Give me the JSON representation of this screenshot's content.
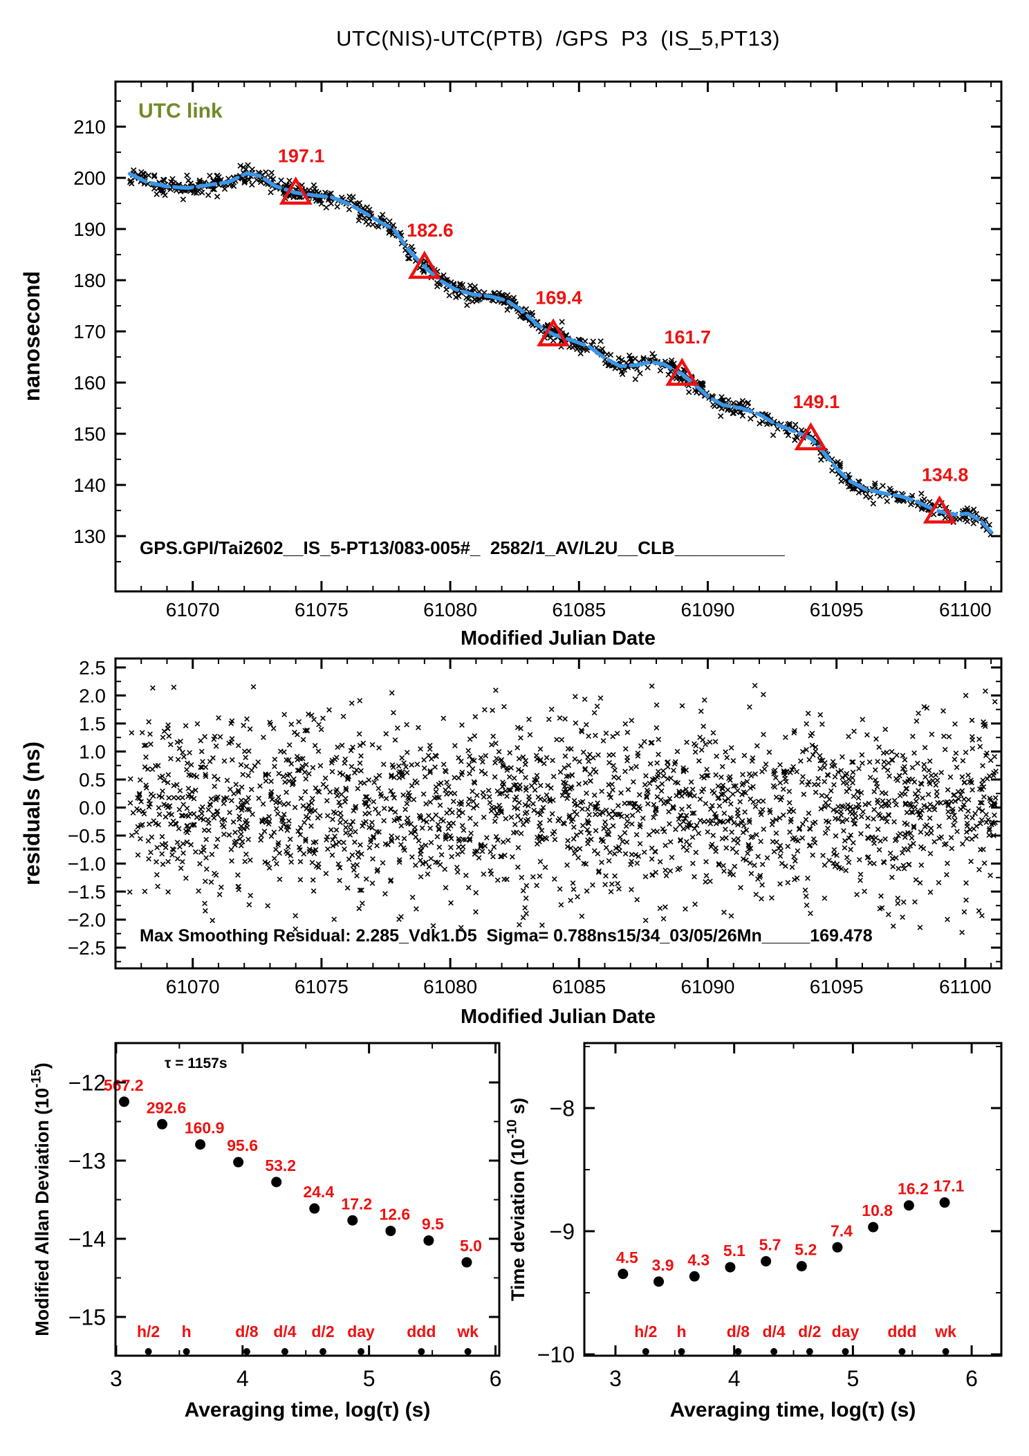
{
  "title": "UTC(NIS)-UTC(PTB)  /GPS  P3  (IS_5,PT13)",
  "colors": {
    "red": "#ee1111",
    "blue": "#3a96e8",
    "green": "#708b28",
    "ink": "#000000"
  },
  "chart_data": [
    {
      "id": "utc-link-chart",
      "type": "scatter",
      "title": "UTC(NIS)-UTC(PTB)  /GPS  P3  (IS_5,PT13)",
      "corner_label": "UTC link",
      "id_string": "GPS.GPI/Tai2602__IS_5-PT13/083-005#_  2582/1_AV/L2U__CLB___________",
      "xlabel": "Modified Julian Date",
      "ylabel": "nanosecond",
      "xlim": [
        61067.0,
        61101.4
      ],
      "ylim": [
        119.2,
        218.8
      ],
      "xticks": [
        61070,
        61075,
        61080,
        61085,
        61090,
        61095,
        61100
      ],
      "yticks": [
        210,
        200,
        190,
        180,
        170,
        160,
        150,
        140,
        130
      ],
      "grid": false,
      "legend": "none",
      "smooth_line": [
        [
          61067.55,
          200.8
        ],
        [
          61068.2,
          199.2
        ],
        [
          61069.0,
          198.3
        ],
        [
          61069.8,
          198.0
        ],
        [
          61070.6,
          198.6
        ],
        [
          61071.4,
          199.2
        ],
        [
          61072.1,
          200.9
        ],
        [
          61072.6,
          200.4
        ],
        [
          61073.2,
          198.4
        ],
        [
          61074.0,
          197.1
        ],
        [
          61074.7,
          196.6
        ],
        [
          61075.4,
          196.2
        ],
        [
          61076.1,
          194.8
        ],
        [
          61076.8,
          192.8
        ],
        [
          61077.4,
          191.0
        ],
        [
          61077.8,
          190.0
        ],
        [
          61078.4,
          185.8
        ],
        [
          61079.0,
          182.6
        ],
        [
          61079.6,
          180.0
        ],
        [
          61080.2,
          178.2
        ],
        [
          61080.9,
          177.2
        ],
        [
          61081.6,
          176.8
        ],
        [
          61082.2,
          176.0
        ],
        [
          61082.8,
          174.0
        ],
        [
          61083.4,
          171.2
        ],
        [
          61084.0,
          169.4
        ],
        [
          61084.7,
          168.3
        ],
        [
          61085.4,
          167.0
        ],
        [
          61086.0,
          164.8
        ],
        [
          61086.6,
          163.2
        ],
        [
          61087.2,
          163.4
        ],
        [
          61087.8,
          164.0
        ],
        [
          61088.3,
          163.6
        ],
        [
          61088.7,
          162.4
        ],
        [
          61089.0,
          161.7
        ],
        [
          61089.5,
          159.6
        ],
        [
          61090.0,
          157.3
        ],
        [
          61090.6,
          155.6
        ],
        [
          61091.3,
          155.0
        ],
        [
          61092.0,
          153.8
        ],
        [
          61092.6,
          152.0
        ],
        [
          61093.2,
          150.8
        ],
        [
          61093.6,
          150.0
        ],
        [
          61094.0,
          149.1
        ],
        [
          61094.5,
          146.4
        ],
        [
          61095.0,
          143.2
        ],
        [
          61095.5,
          140.8
        ],
        [
          61096.1,
          139.2
        ],
        [
          61096.8,
          138.4
        ],
        [
          61097.5,
          137.8
        ],
        [
          61098.1,
          136.8
        ],
        [
          61098.6,
          135.6
        ],
        [
          61099.0,
          134.8
        ],
        [
          61099.6,
          134.2
        ],
        [
          61100.1,
          134.4
        ],
        [
          61100.6,
          133.0
        ],
        [
          61101.0,
          130.8
        ]
      ],
      "markers": {
        "shape": "open-triangle",
        "mjd": [
          61074,
          61079,
          61084,
          61089,
          61094,
          61099
        ],
        "labels": [
          "197.1",
          "182.6",
          "169.4",
          "161.7",
          "149.1",
          "134.8"
        ]
      },
      "scatter_gen": {
        "n": 950,
        "sigma": 0.85,
        "seed": 1337,
        "x_start": 61067.55,
        "x_end": 61101.0
      }
    },
    {
      "id": "residuals-chart",
      "type": "scatter",
      "annotation": "Max Smoothing Residual: 2.285_Vdk1.D5  Sigma= 0.788ns15/34_03/05/26Mn_____169.478",
      "xlabel": "Modified Julian Date",
      "ylabel": "residuals (ns)",
      "xlim": [
        61067.0,
        61101.4
      ],
      "ylim": [
        -2.87,
        2.66
      ],
      "xticks": [
        61070,
        61075,
        61080,
        61085,
        61090,
        61095,
        61100
      ],
      "yticks": [
        2.5,
        2.0,
        1.5,
        1.0,
        0.5,
        0.0,
        -0.5,
        -1.0,
        -1.5,
        -2.0,
        -2.5
      ],
      "grid": false,
      "scatter_gen": {
        "n": 2100,
        "sigma": 0.82,
        "clip": 2.3,
        "seed": 4242,
        "x_start": 61067.55,
        "x_end": 61101.2
      }
    },
    {
      "id": "mdev-chart",
      "type": "scatter",
      "tau_note": "τ = 1157s",
      "xlabel": "Averaging time, log(τ) (s)",
      "ylabel_parts": {
        "prefix": "Modified Allan Deviation (10",
        "sup": "-15",
        "suffix": ")"
      },
      "xlim": [
        2.995,
        6.03
      ],
      "ylim": [
        -15.496,
        -11.496
      ],
      "xticks": [
        3,
        4,
        5,
        6
      ],
      "yticks": [
        -12,
        -13,
        -14,
        -15
      ],
      "log_tau": [
        3.0633,
        3.3644,
        3.6654,
        3.9664,
        4.2675,
        4.5685,
        4.8696,
        5.1706,
        5.4717,
        5.7727
      ],
      "values_1e_15": [
        567.2,
        292.6,
        160.9,
        95.6,
        53.2,
        24.4,
        17.2,
        12.6,
        9.5,
        5.0
      ],
      "point_labels": [
        "567.2",
        "292.6",
        "160.9",
        "95.6",
        "53.2",
        "24.4",
        "17.2",
        "12.6",
        "9.5",
        "5.0"
      ],
      "epochs": {
        "labels": [
          "h/2",
          "h",
          "d/8",
          "d/4",
          "d/2",
          "day",
          "ddd",
          "wk"
        ],
        "log_tau": [
          3.2553,
          3.5563,
          4.0334,
          4.3345,
          4.6355,
          4.9366,
          5.4137,
          5.7817
        ]
      }
    },
    {
      "id": "tdev-chart",
      "type": "scatter",
      "xlabel": "Averaging time, log(τ) (s)",
      "ylabel_parts": {
        "prefix": "Time deviation (10",
        "sup": "-10",
        "suffix": " s)"
      },
      "xlim": [
        2.738,
        6.25
      ],
      "ylim": [
        -10.011,
        -7.472
      ],
      "xticks": [
        3,
        4,
        5,
        6
      ],
      "yticks": [
        -8,
        -9,
        -10
      ],
      "log_tau": [
        3.0633,
        3.3644,
        3.6654,
        3.9664,
        4.2675,
        4.5685,
        4.8696,
        5.1706,
        5.4717,
        5.7727
      ],
      "values_1e_10": [
        4.5,
        3.9,
        4.3,
        5.1,
        5.7,
        5.2,
        7.4,
        10.8,
        16.2,
        17.1
      ],
      "point_labels": [
        "4.5",
        "3.9",
        "4.3",
        "5.1",
        "5.7",
        "5.2",
        "7.4",
        "10.8",
        "16.2",
        "17.1"
      ],
      "epochs": {
        "labels": [
          "h/2",
          "h",
          "d/8",
          "d/4",
          "d/2",
          "day",
          "ddd",
          "wk"
        ],
        "log_tau": [
          3.2553,
          3.5563,
          4.0334,
          4.3345,
          4.6355,
          4.9366,
          5.4137,
          5.7817
        ]
      }
    }
  ]
}
